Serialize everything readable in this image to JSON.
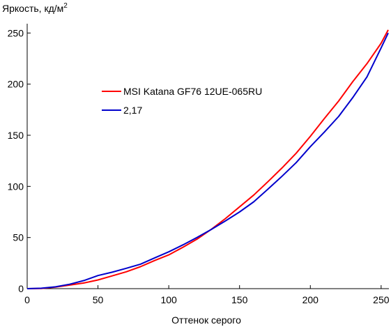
{
  "chart_data": {
    "type": "line",
    "xlabel": "Оттенок серого",
    "ylabel": "Яркость, кд/м",
    "ylabel_sup": "2",
    "xlim": [
      0,
      255
    ],
    "ylim": [
      0,
      255
    ],
    "xticks": [
      0,
      50,
      100,
      150,
      200,
      250
    ],
    "yticks": [
      0,
      50,
      100,
      150,
      200,
      250
    ],
    "grid": false,
    "legend_position": "upper-left-inside",
    "series": [
      {
        "name": "MSI Katana GF76 12UE-065RU",
        "color": "#ff0000",
        "x": [
          0,
          10,
          20,
          30,
          40,
          50,
          60,
          70,
          80,
          90,
          100,
          110,
          120,
          130,
          140,
          150,
          160,
          170,
          180,
          190,
          200,
          210,
          220,
          230,
          240,
          250,
          255
        ],
        "y": [
          0,
          0.2,
          1.5,
          3.5,
          5.5,
          8.5,
          12.5,
          16.5,
          21.5,
          27.5,
          33,
          40.5,
          48.5,
          58,
          68.5,
          80,
          91.5,
          104.5,
          118,
          132.5,
          149,
          166.5,
          183.5,
          202.5,
          220,
          240,
          253
        ]
      },
      {
        "name": "2,17",
        "color": "#0000cc",
        "x": [
          0,
          10,
          20,
          30,
          40,
          50,
          60,
          70,
          80,
          90,
          100,
          110,
          120,
          130,
          140,
          150,
          160,
          170,
          180,
          190,
          200,
          210,
          220,
          230,
          240,
          250,
          255
        ],
        "y": [
          0,
          0.4,
          1.8,
          4.3,
          7.9,
          12.8,
          16.1,
          19.9,
          23.9,
          30.1,
          36.0,
          42.8,
          50.1,
          57.9,
          66.2,
          75.0,
          84.9,
          97.2,
          109.9,
          123.3,
          138.9,
          153.3,
          168.4,
          186.9,
          207.1,
          235.4,
          250.0
        ]
      }
    ]
  }
}
